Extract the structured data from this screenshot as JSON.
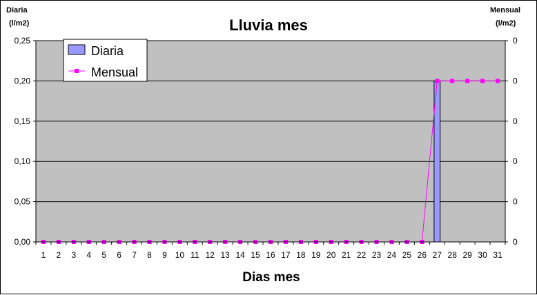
{
  "chart_data": {
    "type": "bar",
    "title": "Lluvia mes",
    "xlabel": "Dias mes",
    "ylabel_left": [
      "Diaria",
      "(l/m2)"
    ],
    "ylabel_right": [
      "Mensual",
      "(l/m2)"
    ],
    "categories": [
      "1",
      "2",
      "3",
      "4",
      "5",
      "6",
      "7",
      "8",
      "9",
      "10",
      "11",
      "12",
      "13",
      "14",
      "15",
      "16",
      "17",
      "18",
      "19",
      "20",
      "21",
      "22",
      "23",
      "24",
      "25",
      "26",
      "27",
      "28",
      "29",
      "30",
      "31"
    ],
    "ylim_left": [
      0,
      0.25
    ],
    "yticks_left": [
      "0,00",
      "0,05",
      "0,10",
      "0,15",
      "0,20",
      "0,25"
    ],
    "yticks_right": [
      "0",
      "0",
      "0",
      "0",
      "0",
      "0"
    ],
    "grid": true,
    "legend_placement": "top-left",
    "series": [
      {
        "name": "Diaria",
        "kind": "bar",
        "axis": "left",
        "color": "#9999ff",
        "values": [
          0,
          0,
          0,
          0,
          0,
          0,
          0,
          0,
          0,
          0,
          0,
          0,
          0,
          0,
          0,
          0,
          0,
          0,
          0,
          0,
          0,
          0,
          0,
          0,
          0,
          0,
          0.2,
          0,
          0,
          0,
          0
        ]
      },
      {
        "name": "Mensual",
        "kind": "line",
        "axis": "right",
        "color": "#ff00ff",
        "values": [
          0,
          0,
          0,
          0,
          0,
          0,
          0,
          0,
          0,
          0,
          0,
          0,
          0,
          0,
          0,
          0,
          0,
          0,
          0,
          0,
          0,
          0,
          0,
          0,
          0,
          0,
          0.2,
          0.2,
          0.2,
          0.2,
          0.2
        ]
      }
    ],
    "plot_background": "#c0c0c0"
  }
}
